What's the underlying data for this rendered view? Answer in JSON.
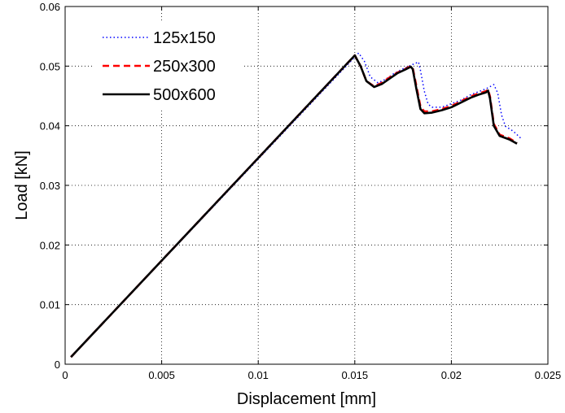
{
  "chart_data": {
    "type": "line",
    "title": "",
    "xlabel": "Displacement [mm]",
    "ylabel": "Load [kN]",
    "xlim": [
      0,
      0.025
    ],
    "ylim": [
      0,
      0.06
    ],
    "xticks": [
      0,
      0.005,
      0.01,
      0.015,
      0.02,
      0.025
    ],
    "xtick_labels": [
      "0",
      "0.005",
      "0.01",
      "0.015",
      "0.02",
      "0.025"
    ],
    "yticks": [
      0,
      0.01,
      0.02,
      0.03,
      0.04,
      0.05,
      0.06
    ],
    "ytick_labels": [
      "0",
      "0.01",
      "0.02",
      "0.03",
      "0.04",
      "0.05",
      "0.06"
    ],
    "grid": true,
    "legend_position": "top-left",
    "series": [
      {
        "name": "125x150",
        "color": "#0000ff",
        "style": "dotted",
        "x": [
          0.0003,
          0.0152,
          0.0155,
          0.0158,
          0.0162,
          0.0166,
          0.017,
          0.0174,
          0.0178,
          0.0183,
          0.0184,
          0.0186,
          0.0188,
          0.019,
          0.0195,
          0.02,
          0.0205,
          0.021,
          0.0214,
          0.0218,
          0.0222,
          0.0224,
          0.0226,
          0.0228,
          0.0232,
          0.0236
        ],
        "y": [
          0.0012,
          0.0522,
          0.0508,
          0.0482,
          0.0472,
          0.0478,
          0.0487,
          0.0494,
          0.05,
          0.0507,
          0.0493,
          0.0458,
          0.0436,
          0.0431,
          0.0431,
          0.0437,
          0.0443,
          0.0452,
          0.0457,
          0.0462,
          0.0469,
          0.0455,
          0.0418,
          0.0399,
          0.0391,
          0.0379
        ]
      },
      {
        "name": "250x300",
        "color": "#ff0000",
        "style": "dashed",
        "x": [
          0.0003,
          0.015,
          0.0153,
          0.0156,
          0.016,
          0.0164,
          0.0168,
          0.0172,
          0.0176,
          0.0179,
          0.018,
          0.0182,
          0.0184,
          0.0186,
          0.019,
          0.0195,
          0.02,
          0.0205,
          0.021,
          0.0214,
          0.0218,
          0.0219,
          0.022,
          0.0222,
          0.0225,
          0.023,
          0.0234
        ],
        "y": [
          0.0012,
          0.0518,
          0.05,
          0.0475,
          0.0466,
          0.0472,
          0.0481,
          0.0489,
          0.0495,
          0.05,
          0.0497,
          0.0465,
          0.0432,
          0.0424,
          0.0424,
          0.0428,
          0.0433,
          0.0441,
          0.0449,
          0.0454,
          0.0458,
          0.0461,
          0.0449,
          0.0403,
          0.0385,
          0.0379,
          0.0371
        ]
      },
      {
        "name": "500x600",
        "color": "#000000",
        "style": "solid",
        "x": [
          0.0003,
          0.015,
          0.0153,
          0.0156,
          0.016,
          0.0164,
          0.0168,
          0.0172,
          0.0176,
          0.0179,
          0.018,
          0.0182,
          0.0184,
          0.0186,
          0.019,
          0.0195,
          0.02,
          0.0205,
          0.021,
          0.0214,
          0.0218,
          0.0219,
          0.022,
          0.0222,
          0.0225,
          0.023,
          0.0234
        ],
        "y": [
          0.0012,
          0.0518,
          0.05,
          0.0475,
          0.0465,
          0.047,
          0.0479,
          0.0488,
          0.0494,
          0.0499,
          0.0495,
          0.046,
          0.0428,
          0.0421,
          0.0422,
          0.0426,
          0.0431,
          0.0439,
          0.0447,
          0.0452,
          0.0456,
          0.0459,
          0.0446,
          0.04,
          0.0383,
          0.0377,
          0.037
        ]
      }
    ]
  }
}
